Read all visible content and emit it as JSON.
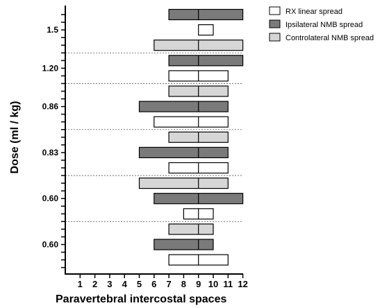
{
  "chart_data": {
    "type": "bar",
    "orientation": "horizontal-ranges",
    "xlabel": "Paravertebral intercostal spaces",
    "ylabel": "Dose (ml / kg)",
    "x_ticks": [
      "1",
      "2",
      "3",
      "4",
      "5",
      "6",
      "7",
      "8",
      "9",
      "10",
      "11",
      "12"
    ],
    "xlim": [
      0,
      12
    ],
    "reference_line_x": 9,
    "legend_position": "top-right",
    "series": [
      {
        "name": "RX linear spread",
        "color": "#ffffff"
      },
      {
        "name": "Ipsilateral NMB spread",
        "color": "#7a7a7a"
      },
      {
        "name": "Controlateral NMB spread",
        "color": "#d6d6d6"
      }
    ],
    "groups": [
      {
        "label": "1.5",
        "bars": [
          {
            "series": 1,
            "start": 7,
            "end": 12
          },
          {
            "series": 0,
            "start": 9,
            "end": 10
          },
          {
            "series": 2,
            "start": 6,
            "end": 12
          }
        ]
      },
      {
        "label": "1.20",
        "bars": [
          {
            "series": 1,
            "start": 7,
            "end": 12
          },
          {
            "series": 0,
            "start": 7,
            "end": 11
          }
        ]
      },
      {
        "label": "0.86",
        "bars": [
          {
            "series": 2,
            "start": 7,
            "end": 11
          },
          {
            "series": 1,
            "start": 5,
            "end": 11
          },
          {
            "series": 0,
            "start": 6,
            "end": 11
          }
        ]
      },
      {
        "label": "0.83",
        "bars": [
          {
            "series": 2,
            "start": 7,
            "end": 11
          },
          {
            "series": 1,
            "start": 5,
            "end": 11
          },
          {
            "series": 0,
            "start": 7,
            "end": 11
          }
        ]
      },
      {
        "label": "0.60",
        "bars": [
          {
            "series": 2,
            "start": 5,
            "end": 11
          },
          {
            "series": 1,
            "start": 6,
            "end": 12
          },
          {
            "series": 0,
            "start": 8,
            "end": 10
          }
        ]
      },
      {
        "label": "0.60",
        "bars": [
          {
            "series": 2,
            "start": 7,
            "end": 10
          },
          {
            "series": 1,
            "start": 6,
            "end": 10
          },
          {
            "series": 0,
            "start": 7,
            "end": 11
          }
        ]
      }
    ]
  }
}
